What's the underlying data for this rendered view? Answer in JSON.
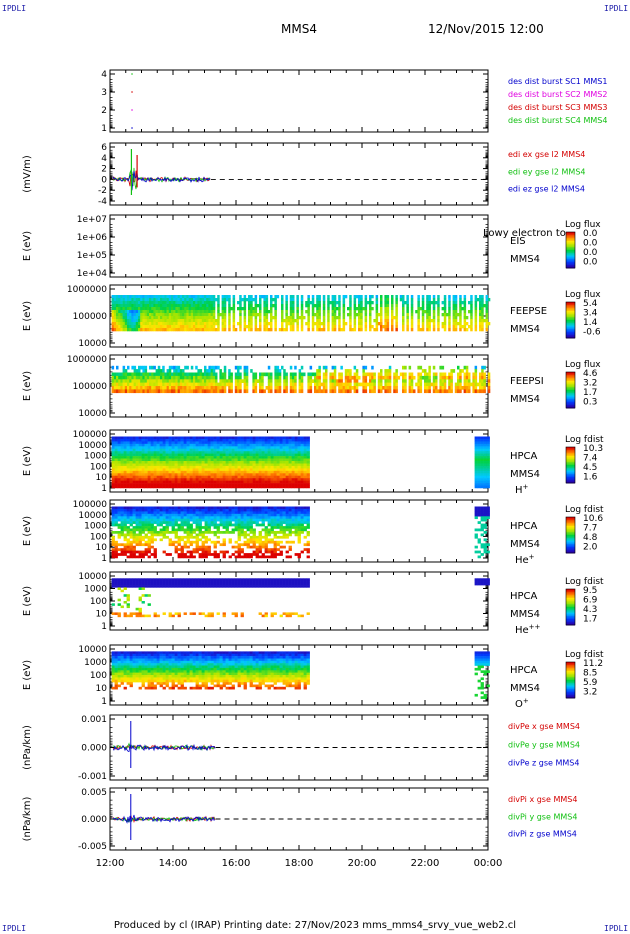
{
  "corner_label": "IPDLI",
  "header": {
    "spacecraft": "MMS4",
    "datetime": "12/Nov/2015 12:00"
  },
  "footer": {
    "text": "Produced by cl (IRAP)   Printing date: 27/Nov/2023   mms_mms4_srvy_vue_web2.cl"
  },
  "x_axis": {
    "ticks": [
      "12:00",
      "14:00",
      "16:00",
      "18:00",
      "20:00",
      "22:00",
      "00:00"
    ]
  },
  "colors": {
    "red": "#d40000",
    "green": "#11c011",
    "blue": "#0000cc",
    "magenta": "#e000e0"
  },
  "chart_data": [
    {
      "type": "scatter",
      "id": "burst",
      "yticks": [
        "4",
        "3",
        "2",
        "1"
      ],
      "legend": [
        {
          "label": "des dist burst SC1 MMS1",
          "color": "#0000cc"
        },
        {
          "label": "des dist burst SC2 MMS2",
          "color": "#e000e0"
        },
        {
          "label": "des dist burst SC3 MMS3",
          "color": "#d40000"
        },
        {
          "label": "des dist burst SC4 MMS4",
          "color": "#11c011"
        }
      ]
    },
    {
      "type": "line",
      "id": "edi",
      "ylabel": "(mV/m)",
      "yticks": [
        "6",
        "4",
        "2",
        "0",
        "-2",
        "-4"
      ],
      "legend": [
        {
          "label": "edi ex gse l2 MMS4",
          "color": "#d40000"
        },
        {
          "label": "edi ey gse l2 MMS4",
          "color": "#11c011"
        },
        {
          "label": "edi ez gse l2 MMS4",
          "color": "#0000cc"
        }
      ]
    },
    {
      "type": "heatmap",
      "id": "eis",
      "ylabel": "E (eV)",
      "yticks": [
        "1e+07",
        "1e+06",
        "1e+05",
        "1e+04"
      ],
      "instrument": [
        "EIS",
        "MMS4"
      ],
      "species": "Lowy electron to",
      "cbar_title": "Log flux",
      "cbar_ticks": [
        "0.0",
        "0.0",
        "0.0",
        "0.0"
      ]
    },
    {
      "type": "heatmap",
      "id": "feepse",
      "ylabel": "E (eV)",
      "yticks": [
        "1000000",
        "100000",
        "10000"
      ],
      "instrument": [
        "FEEPSE",
        "MMS4"
      ],
      "cbar_title": "Log flux",
      "cbar_ticks": [
        "5.4",
        "3.4",
        "1.4",
        "-0.6"
      ]
    },
    {
      "type": "heatmap",
      "id": "feepsi",
      "ylabel": "E (eV)",
      "yticks": [
        "1000000",
        "100000",
        "10000"
      ],
      "instrument": [
        "FEEPSI",
        "MMS4"
      ],
      "cbar_title": "Log flux",
      "cbar_ticks": [
        "4.6",
        "3.2",
        "1.7",
        "0.3"
      ]
    },
    {
      "type": "heatmap",
      "id": "hpca_h",
      "ylabel": "E (eV)",
      "yticks": [
        "100000",
        "10000",
        "1000",
        "100",
        "10",
        "1"
      ],
      "instrument": [
        "HPCA",
        "MMS4"
      ],
      "species": "H+",
      "cbar_title": "Log fdist",
      "cbar_ticks": [
        "10.3",
        "7.4",
        "4.5",
        "1.6"
      ]
    },
    {
      "type": "heatmap",
      "id": "hpca_he",
      "ylabel": "E (eV)",
      "yticks": [
        "100000",
        "10000",
        "1000",
        "100",
        "10",
        "1"
      ],
      "instrument": [
        "HPCA",
        "MMS4"
      ],
      "species": "He+",
      "cbar_title": "Log fdist",
      "cbar_ticks": [
        "10.6",
        "7.7",
        "4.8",
        "2.0"
      ]
    },
    {
      "type": "heatmap",
      "id": "hpca_hepp",
      "ylabel": "E (eV)",
      "yticks": [
        "10000",
        "1000",
        "100",
        "10",
        "1"
      ],
      "instrument": [
        "HPCA",
        "MMS4"
      ],
      "species": "He++",
      "cbar_title": "Log fdist",
      "cbar_ticks": [
        "9.5",
        "6.9",
        "4.3",
        "1.7"
      ]
    },
    {
      "type": "heatmap",
      "id": "hpca_o",
      "ylabel": "E (eV)",
      "yticks": [
        "10000",
        "1000",
        "100",
        "10",
        "1"
      ],
      "instrument": [
        "HPCA",
        "MMS4"
      ],
      "species": "O+",
      "cbar_title": "Log fdist",
      "cbar_ticks": [
        "11.2",
        "8.5",
        "5.9",
        "3.2"
      ]
    },
    {
      "type": "line",
      "id": "divpe",
      "ylabel": "(nPa/km)",
      "yticks": [
        "0.001",
        "0.000",
        "-0.001"
      ],
      "legend": [
        {
          "label": "divPe x gse MMS4",
          "color": "#d40000"
        },
        {
          "label": "divPe y gse MMS4",
          "color": "#11c011"
        },
        {
          "label": "divPe z gse MMS4",
          "color": "#0000cc"
        }
      ]
    },
    {
      "type": "line",
      "id": "divpi",
      "ylabel": "(nPa/km)",
      "yticks": [
        "0.005",
        "0.000",
        "-0.005"
      ],
      "legend": [
        {
          "label": "divPi x gse MMS4",
          "color": "#d40000"
        },
        {
          "label": "divPi y gse MMS4",
          "color": "#11c011"
        },
        {
          "label": "divPi z gse MMS4",
          "color": "#0000cc"
        }
      ]
    }
  ]
}
